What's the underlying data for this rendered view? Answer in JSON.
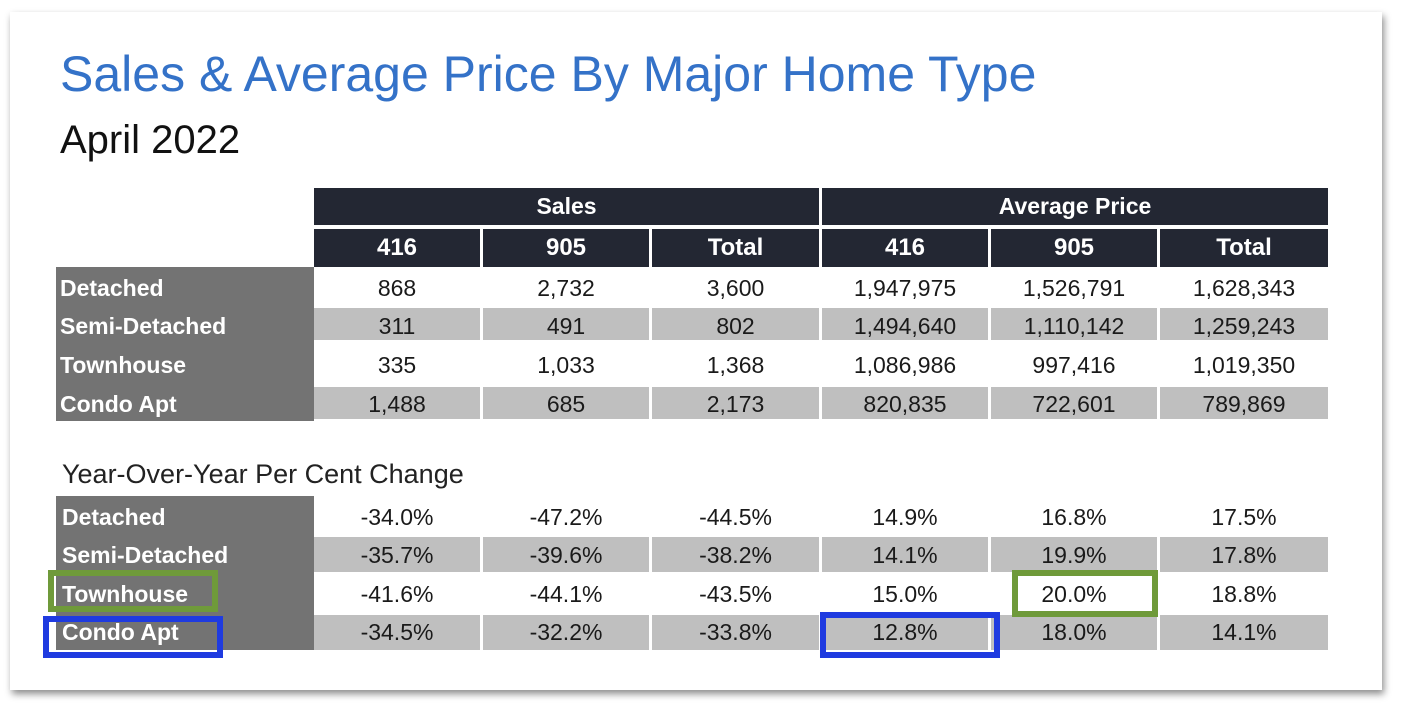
{
  "title": "Sales & Average Price By Major Home Type",
  "subtitle": "April 2022",
  "groups": [
    "Sales",
    "Average Price"
  ],
  "columns": [
    "416",
    "905",
    "Total",
    "416",
    "905",
    "Total"
  ],
  "table": {
    "rows": [
      {
        "label": "Detached",
        "values": [
          "868",
          "2,732",
          "3,600",
          "1,947,975",
          "1,526,791",
          "1,628,343"
        ]
      },
      {
        "label": "Semi-Detached",
        "values": [
          "311",
          "491",
          "802",
          "1,494,640",
          "1,110,142",
          "1,259,243"
        ]
      },
      {
        "label": "Townhouse",
        "values": [
          "335",
          "1,033",
          "1,368",
          "1,086,986",
          "997,416",
          "1,019,350"
        ]
      },
      {
        "label": "Condo Apt",
        "values": [
          "1,488",
          "685",
          "2,173",
          "820,835",
          "722,601",
          "789,869"
        ]
      }
    ]
  },
  "yoy": {
    "title": "Year-Over-Year Per Cent Change",
    "rows": [
      {
        "label": "Detached",
        "values": [
          "-34.0%",
          "-47.2%",
          "-44.5%",
          "14.9%",
          "16.8%",
          "17.5%"
        ]
      },
      {
        "label": "Semi-Detached",
        "values": [
          "-35.7%",
          "-39.6%",
          "-38.2%",
          "14.1%",
          "19.9%",
          "17.8%"
        ]
      },
      {
        "label": "Townhouse",
        "values": [
          "-41.6%",
          "-44.1%",
          "-43.5%",
          "15.0%",
          "20.0%",
          "18.8%"
        ]
      },
      {
        "label": "Condo Apt",
        "values": [
          "-34.5%",
          "-32.2%",
          "-33.8%",
          "12.8%",
          "18.0%",
          "14.1%"
        ]
      }
    ]
  },
  "highlight_colors": {
    "green": "#6f9a3a",
    "blue": "#1f3be0"
  }
}
